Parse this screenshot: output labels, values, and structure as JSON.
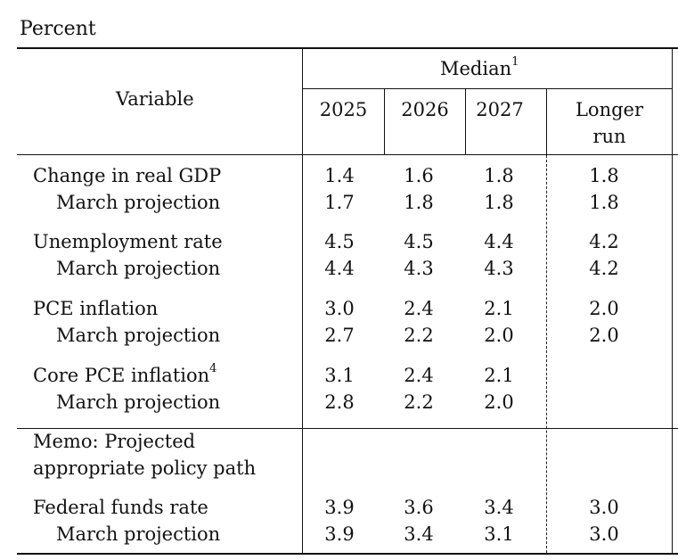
{
  "unit_label": "Percent",
  "header": {
    "variable_label": "Variable",
    "median_label": "Median",
    "median_footnote": "1",
    "years": [
      "2025",
      "2026",
      "2027"
    ],
    "longer_run_line1": "Longer",
    "longer_run_line2": "run"
  },
  "rows": [
    {
      "label": "Change in real GDP",
      "footnote": "",
      "values": [
        "1.4",
        "1.6",
        "1.8",
        "1.8"
      ]
    },
    {
      "label": "March projection",
      "footnote": "",
      "values": [
        "1.7",
        "1.8",
        "1.8",
        "1.8"
      ]
    },
    {
      "label": "Unemployment rate",
      "footnote": "",
      "values": [
        "4.5",
        "4.5",
        "4.4",
        "4.2"
      ]
    },
    {
      "label": "March projection",
      "footnote": "",
      "values": [
        "4.4",
        "4.3",
        "4.3",
        "4.2"
      ]
    },
    {
      "label": "PCE inflation",
      "footnote": "",
      "values": [
        "3.0",
        "2.4",
        "2.1",
        "2.0"
      ]
    },
    {
      "label": "March projection",
      "footnote": "",
      "values": [
        "2.7",
        "2.2",
        "2.0",
        "2.0"
      ]
    },
    {
      "label": "Core PCE inflation",
      "footnote": "4",
      "values": [
        "3.1",
        "2.4",
        "2.1",
        ""
      ]
    },
    {
      "label": "March projection",
      "footnote": "",
      "values": [
        "2.8",
        "2.2",
        "2.0",
        ""
      ]
    }
  ],
  "memo": {
    "line1": "Memo: Projected",
    "line2": "appropriate policy path"
  },
  "memo_rows": [
    {
      "label": "Federal funds rate",
      "values": [
        "3.9",
        "3.6",
        "3.4",
        "3.0"
      ]
    },
    {
      "label": "March projection",
      "values": [
        "3.9",
        "3.4",
        "3.1",
        "3.0"
      ]
    }
  ]
}
